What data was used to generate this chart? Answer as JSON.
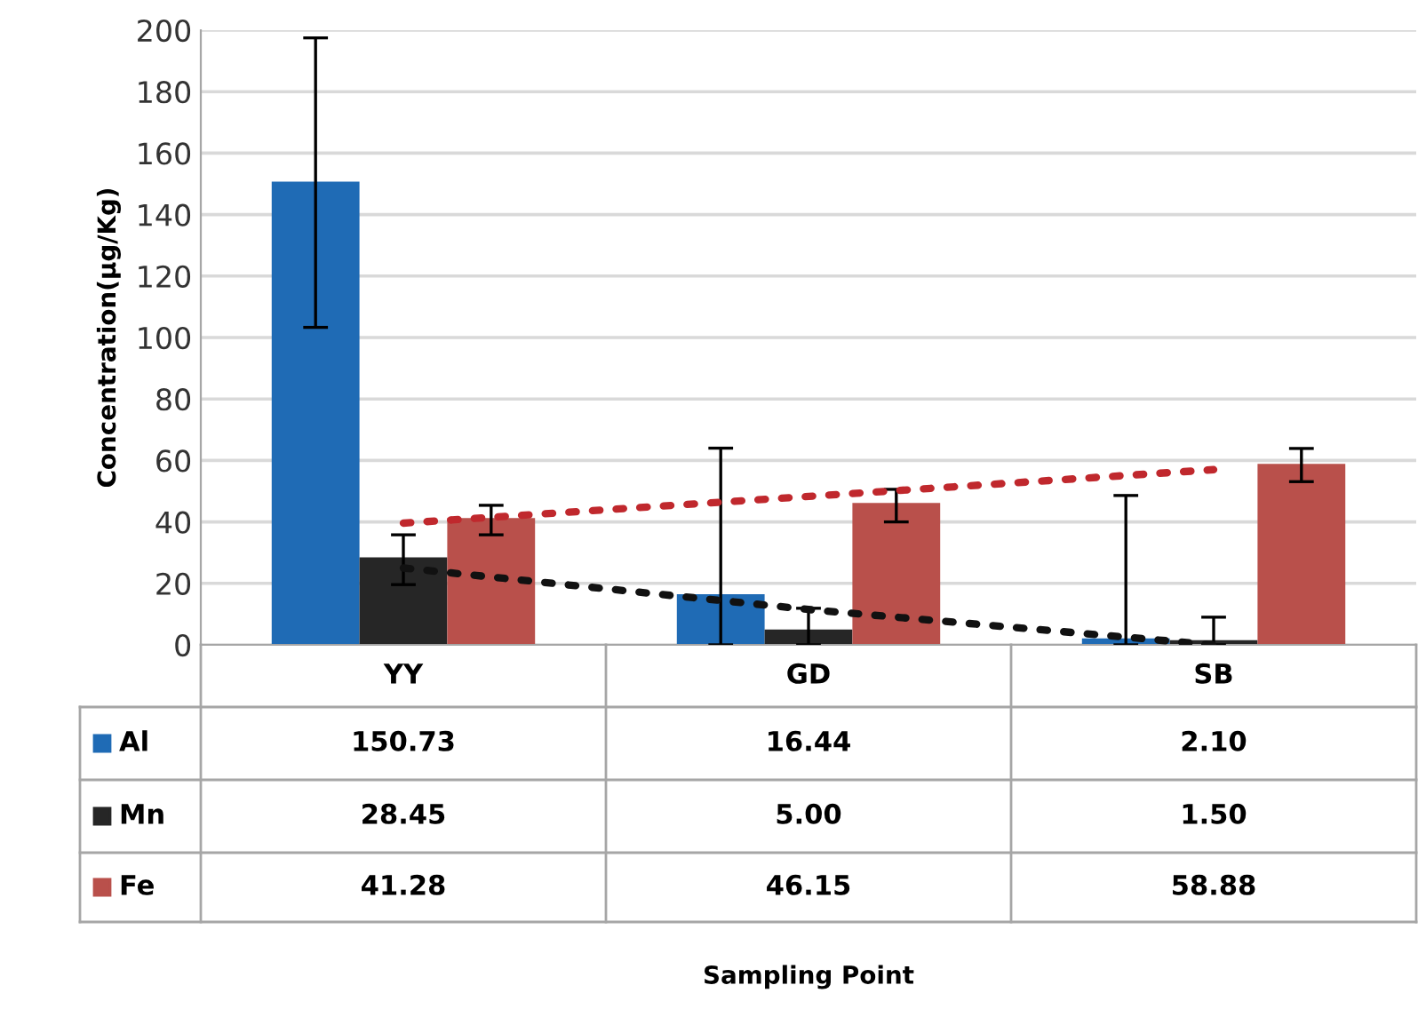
{
  "chart_data": {
    "type": "bar",
    "ylabel": "Concentration(µg/Kg)",
    "annotations": [
      "Sampling Point"
    ],
    "categories": [
      "YY",
      "GD",
      "SB"
    ],
    "series": [
      {
        "name": "Al",
        "color": "#1f6bb5",
        "values": [
          150.73,
          16.44,
          2.1
        ],
        "value_labels": [
          "150.73",
          "16.44",
          "2.10"
        ],
        "errors": [
          [
            103.3,
            197.5
          ],
          [
            0,
            64
          ],
          [
            0,
            48.6
          ]
        ]
      },
      {
        "name": "Mn",
        "color": "#262626",
        "values": [
          28.45,
          5.0,
          1.5
        ],
        "value_labels": [
          "28.45",
          "5.00",
          "1.50"
        ],
        "errors": [
          [
            19.6,
            35.8
          ],
          [
            0,
            11.9
          ],
          [
            0,
            9.0
          ]
        ]
      },
      {
        "name": "Fe",
        "color": "#b9504b",
        "values": [
          41.28,
          46.15,
          58.88
        ],
        "value_labels": [
          "41.28",
          "46.15",
          "58.88"
        ],
        "errors": [
          [
            35.8,
            45.4
          ],
          [
            40.0,
            50.6
          ],
          [
            53.1,
            63.9
          ]
        ]
      },
      {
        "type": "line",
        "line_style": "dotted",
        "color": "#c0282d",
        "x": [
          "YY",
          "SB"
        ],
        "values": [
          39.6,
          57.0
        ]
      },
      {
        "type": "line",
        "line_style": "dotted",
        "color": "#111111",
        "x": [
          "YY",
          "GD",
          "SB"
        ],
        "values": [
          25.0,
          11.5,
          0
        ]
      }
    ],
    "ylim": [
      0,
      200
    ],
    "yticks": [
      0,
      20,
      40,
      60,
      80,
      100,
      120,
      140,
      160,
      180,
      200
    ],
    "grid": "y",
    "legend": "bottom left"
  }
}
